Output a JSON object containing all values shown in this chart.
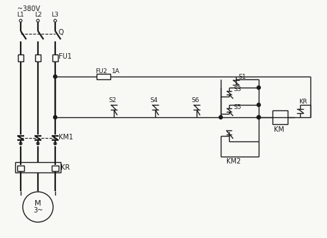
{
  "bg_color": "#f8f8f5",
  "line_color": "#1a1a1a",
  "voltage_label": "~380V",
  "phase_labels": [
    "L1",
    "L2",
    "L3"
  ],
  "labels": {
    "Q": "Q",
    "FU1": "FU1",
    "FU2": "FU2",
    "FU2_rating": "1A",
    "KM1": "KM1",
    "KR_main": "KR",
    "S1": "S1",
    "S2": "S2",
    "S3": "S3",
    "S4": "S4",
    "S5": "S5",
    "S6": "S6",
    "KM": "KM",
    "KM2": "KM2",
    "KR_ctrl": "KR",
    "M": "M",
    "M_phase": "3~"
  },
  "fig_width": 4.74,
  "fig_height": 3.45,
  "dpi": 100
}
